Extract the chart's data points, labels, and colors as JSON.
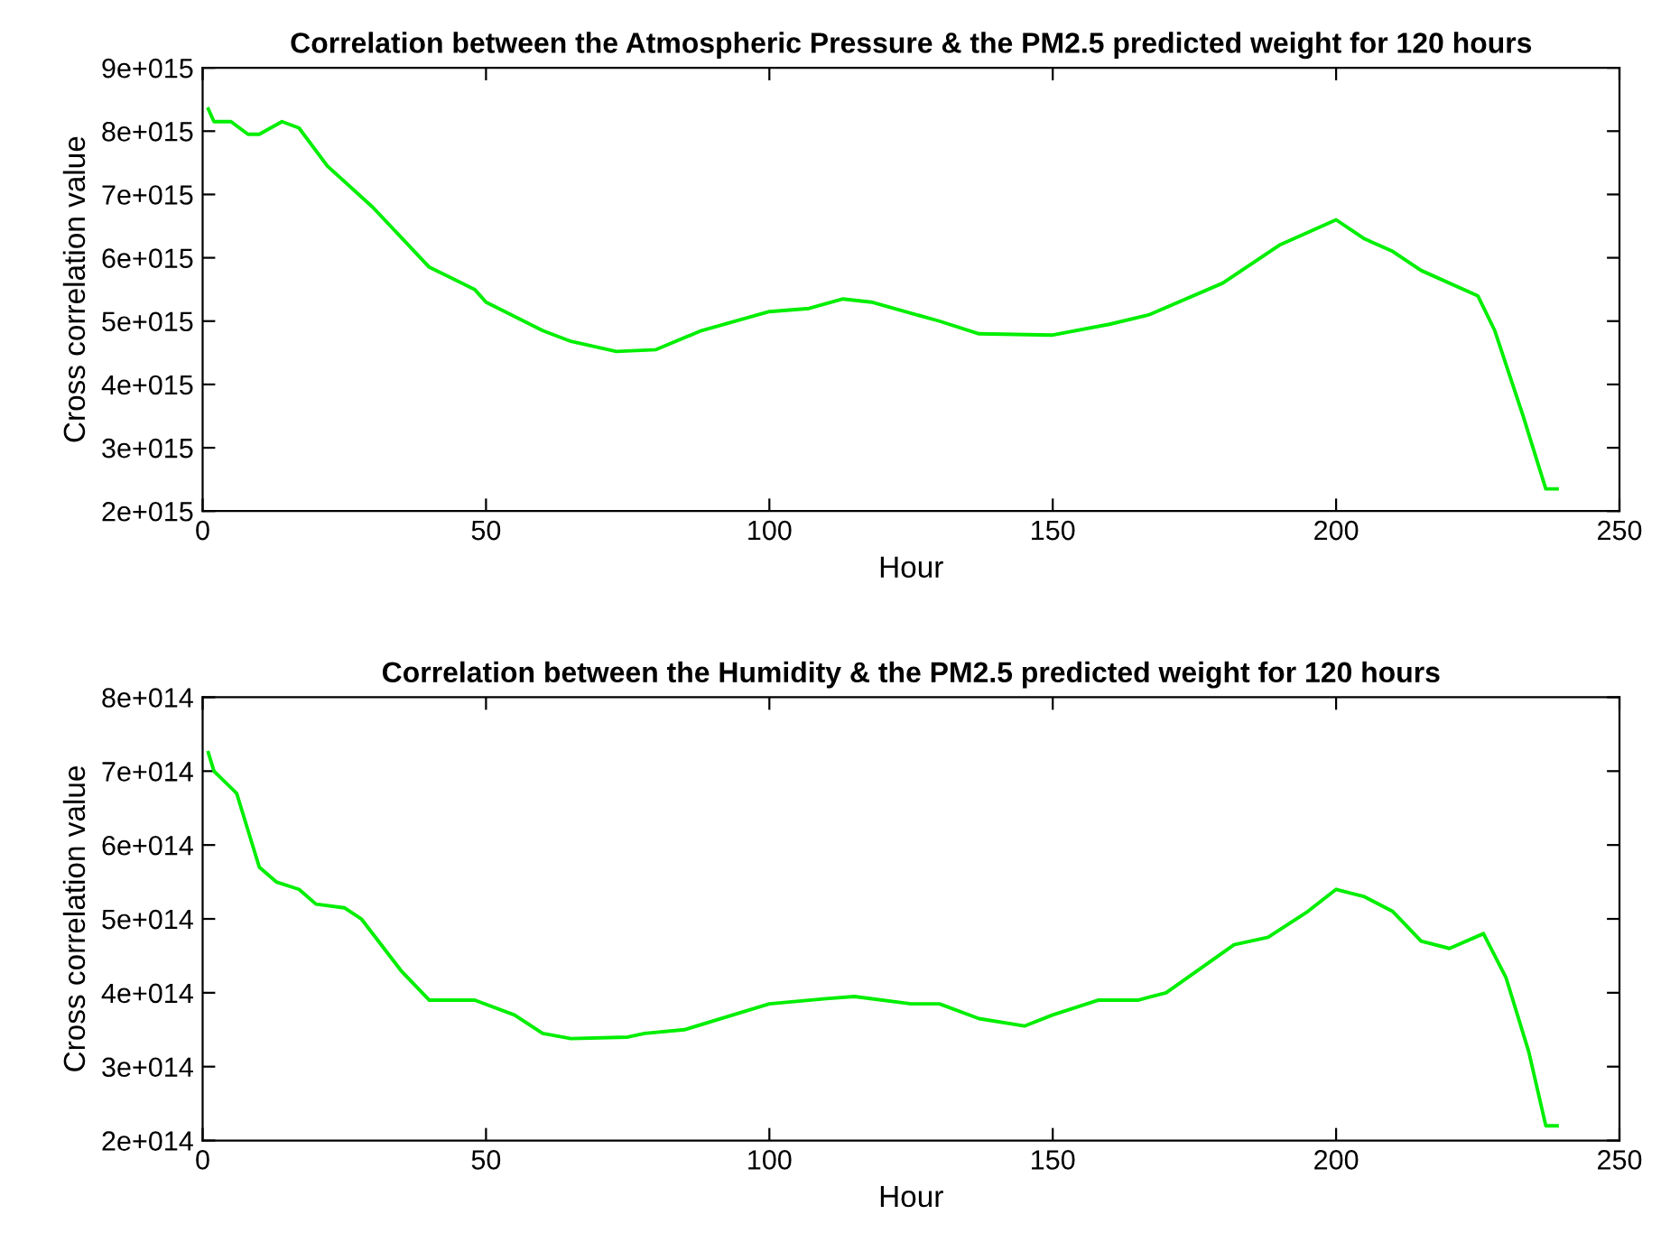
{
  "chart_data": [
    {
      "type": "line",
      "title": "Correlation between the Atmospheric Pressure & the PM2.5 predicted weight for 120 hours",
      "xlabel": "Hour",
      "ylabel": "Cross correlation value",
      "xlim": [
        0,
        250
      ],
      "xticks": [
        0,
        50,
        100,
        150,
        200,
        250
      ],
      "ylim": [
        2000000000000000.0,
        9000000000000000.0
      ],
      "yticks": [
        {
          "value": 2000000000000000.0,
          "label": "2e+015"
        },
        {
          "value": 3000000000000000.0,
          "label": "3e+015"
        },
        {
          "value": 4000000000000000.0,
          "label": "4e+015"
        },
        {
          "value": 5000000000000000.0,
          "label": "5e+015"
        },
        {
          "value": 6000000000000000.0,
          "label": "6e+015"
        },
        {
          "value": 7000000000000000.0,
          "label": "7e+015"
        },
        {
          "value": 8000000000000000.0,
          "label": "8e+015"
        },
        {
          "value": 9000000000000000.0,
          "label": "9e+015"
        }
      ],
      "grid": false,
      "legend": false,
      "series": [
        {
          "color": "#00ee00",
          "x": [
            1,
            2,
            5,
            8,
            10,
            12,
            14,
            17,
            22,
            30,
            40,
            48,
            50,
            60,
            65,
            73,
            80,
            88,
            100,
            107,
            113,
            118,
            130,
            137,
            150,
            160,
            167,
            180,
            190,
            200,
            205,
            210,
            215,
            225,
            228,
            233,
            237,
            238,
            239
          ],
          "values": [
            8350000000000000.0,
            8150000000000000.0,
            8150000000000000.0,
            7950000000000000.0,
            7950000000000000.0,
            8050000000000000.0,
            8150000000000000.0,
            8050000000000000.0,
            7450000000000000.0,
            6800000000000000.0,
            5850000000000000.0,
            5500000000000000.0,
            5300000000000000.0,
            4850000000000000.0,
            4680000000000000.0,
            4520000000000000.0,
            4550000000000000.0,
            4850000000000000.0,
            5150000000000000.0,
            5200000000000000.0,
            5350000000000000.0,
            5300000000000000.0,
            5000000000000000.0,
            4800000000000000.0,
            4780000000000000.0,
            4950000000000000.0,
            5100000000000000.0,
            5600000000000000.0,
            6200000000000000.0,
            6600000000000000.0,
            6300000000000000.0,
            6100000000000000.0,
            5800000000000000.0,
            5400000000000000.0,
            4850000000000000.0,
            3500000000000000.0,
            2350000000000000.0,
            2350000000000000.0,
            2350000000000000.0
          ]
        }
      ]
    },
    {
      "type": "line",
      "title": "Correlation between the Humidity & the PM2.5 predicted weight for 120 hours",
      "xlabel": "Hour",
      "ylabel": "Cross correlation value",
      "xlim": [
        0,
        250
      ],
      "xticks": [
        0,
        50,
        100,
        150,
        200,
        250
      ],
      "ylim": [
        200000000000000.0,
        800000000000000.0
      ],
      "yticks": [
        {
          "value": 200000000000000.0,
          "label": "2e+014"
        },
        {
          "value": 300000000000000.0,
          "label": "3e+014"
        },
        {
          "value": 400000000000000.0,
          "label": "4e+014"
        },
        {
          "value": 500000000000000.0,
          "label": "5e+014"
        },
        {
          "value": 600000000000000.0,
          "label": "6e+014"
        },
        {
          "value": 700000000000000.0,
          "label": "7e+014"
        },
        {
          "value": 800000000000000.0,
          "label": "8e+014"
        }
      ],
      "grid": false,
      "legend": false,
      "series": [
        {
          "color": "#00ee00",
          "x": [
            1,
            2,
            6,
            8,
            10,
            13,
            17,
            20,
            25,
            28,
            35,
            40,
            48,
            55,
            60,
            65,
            75,
            78,
            85,
            100,
            110,
            115,
            125,
            130,
            137,
            145,
            150,
            158,
            165,
            170,
            182,
            188,
            195,
            200,
            205,
            210,
            215,
            220,
            226,
            230,
            234,
            237,
            239
          ],
          "values": [
            725000000000000.0,
            700000000000000.0,
            670000000000000.0,
            620000000000000.0,
            570000000000000.0,
            550000000000000.0,
            540000000000000.0,
            520000000000000.0,
            515000000000000.0,
            500000000000000.0,
            430000000000000.0,
            390000000000000.0,
            390000000000000.0,
            370000000000000.0,
            345000000000000.0,
            338000000000000.0,
            340000000000000.0,
            345000000000000.0,
            350000000000000.0,
            385000000000000.0,
            392000000000000.0,
            395000000000000.0,
            385000000000000.0,
            385000000000000.0,
            365000000000000.0,
            355000000000000.0,
            370000000000000.0,
            390000000000000.0,
            390000000000000.0,
            400000000000000.0,
            465000000000000.0,
            475000000000000.0,
            510000000000000.0,
            540000000000000.0,
            530000000000000.0,
            510000000000000.0,
            470000000000000.0,
            460000000000000.0,
            480000000000000.0,
            420000000000000.0,
            320000000000000.0,
            220000000000000.0,
            220000000000000.0
          ]
        }
      ]
    }
  ]
}
